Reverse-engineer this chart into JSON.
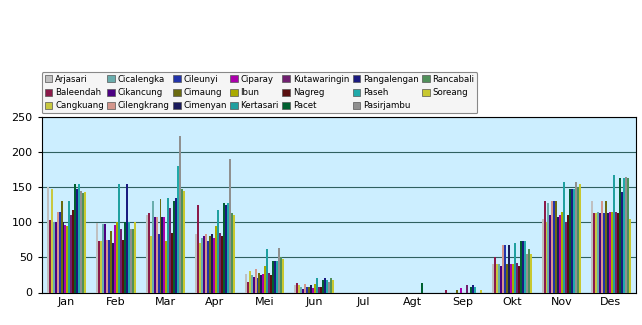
{
  "months": [
    "Jan",
    "Feb",
    "Mar",
    "Apr",
    "Mei",
    "Jun",
    "Jul",
    "Agt",
    "Sep",
    "Okt",
    "Nov",
    "Des"
  ],
  "stations": [
    "Arjasari",
    "Baleendah",
    "Cangkuang",
    "Cicalengka",
    "Cikancung",
    "Cilengkrang",
    "Cileunyi",
    "Cimaung",
    "Cimenyan",
    "Ciparay",
    "Ibun",
    "Kertasari",
    "Kutawaringin",
    "Nagreg",
    "Pacet",
    "Pangalengan",
    "Paseh",
    "Pasirjambu",
    "Rancabali",
    "Soreang"
  ],
  "bar_colors": [
    "#c0c0c0",
    "#8b1a4a",
    "#c8c840",
    "#6aadad",
    "#4b0082",
    "#d4968c",
    "#2233aa",
    "#6b6b10",
    "#1a1a5a",
    "#aa00aa",
    "#aaaa00",
    "#20a0a0",
    "#702070",
    "#5a1010",
    "#006030",
    "#1a1a80",
    "#20aaaa",
    "#909090",
    "#50905a",
    "#c8c830"
  ],
  "data": {
    "Jan": [
      150,
      103,
      148,
      100,
      100,
      114,
      115,
      130,
      100,
      96,
      95,
      130,
      110,
      117,
      155,
      148,
      155,
      144,
      142,
      143
    ],
    "Feb": [
      99,
      73,
      73,
      97,
      98,
      75,
      75,
      88,
      70,
      96,
      100,
      155,
      90,
      75,
      100,
      155,
      100,
      90,
      90,
      100
    ],
    "Mar": [
      110,
      113,
      80,
      131,
      108,
      108,
      83,
      133,
      107,
      107,
      73,
      135,
      120,
      85,
      130,
      135,
      180,
      223,
      148,
      145
    ],
    "Apr": [
      83,
      125,
      70,
      77,
      80,
      83,
      73,
      80,
      84,
      77,
      95,
      117,
      85,
      80,
      128,
      125,
      128,
      190,
      113,
      110
    ],
    "Mei": [
      27,
      15,
      30,
      25,
      22,
      34,
      21,
      28,
      25,
      27,
      38,
      62,
      28,
      25,
      45,
      45,
      45,
      63,
      50,
      48
    ],
    "Jun": [
      10,
      13,
      10,
      8,
      5,
      12,
      8,
      8,
      10,
      7,
      12,
      20,
      8,
      8,
      18,
      20,
      18,
      15,
      20,
      18
    ],
    "Jul": [
      0,
      0,
      0,
      0,
      0,
      0,
      0,
      0,
      0,
      0,
      0,
      0,
      0,
      0,
      0,
      0,
      0,
      0,
      0,
      0
    ],
    "Agt": [
      0,
      0,
      0,
      0,
      0,
      0,
      0,
      0,
      0,
      0,
      0,
      0,
      0,
      0,
      14,
      0,
      0,
      0,
      0,
      0
    ],
    "Sep": [
      0,
      3,
      0,
      0,
      0,
      0,
      0,
      4,
      0,
      6,
      0,
      0,
      10,
      0,
      8,
      10,
      8,
      0,
      0,
      3
    ],
    "Okt": [
      40,
      50,
      40,
      40,
      38,
      67,
      67,
      40,
      68,
      40,
      40,
      70,
      42,
      38,
      73,
      73,
      73,
      55,
      62,
      55
    ],
    "Nov": [
      105,
      130,
      100,
      128,
      110,
      130,
      130,
      130,
      108,
      110,
      115,
      158,
      100,
      110,
      147,
      147,
      147,
      157,
      150,
      155
    ],
    "Des": [
      130,
      113,
      113,
      115,
      113,
      130,
      113,
      130,
      113,
      115,
      115,
      168,
      115,
      113,
      163,
      143,
      163,
      165,
      163,
      105
    ]
  },
  "ylim": [
    0,
    250
  ],
  "yticks": [
    0,
    50,
    100,
    150,
    200,
    250
  ],
  "bg_color": "#cceeff",
  "grid_color": "#2f6060",
  "fig_color": "#ffffff",
  "legend_labels": [
    "Arjasari",
    "Baleendah",
    "Cangkuang",
    "Cicalengka",
    "Cikancung",
    "Cilengkrang",
    "Cileunyi",
    "Cimaung",
    "Cimenyan",
    "Ciparay",
    "Ibun",
    "Kertasari",
    "Kutawaringin",
    "Nagreg",
    "Pacet",
    "Pangalengan",
    "Paseh",
    "Pasirjambu",
    "Rancabali",
    "Soreang"
  ]
}
